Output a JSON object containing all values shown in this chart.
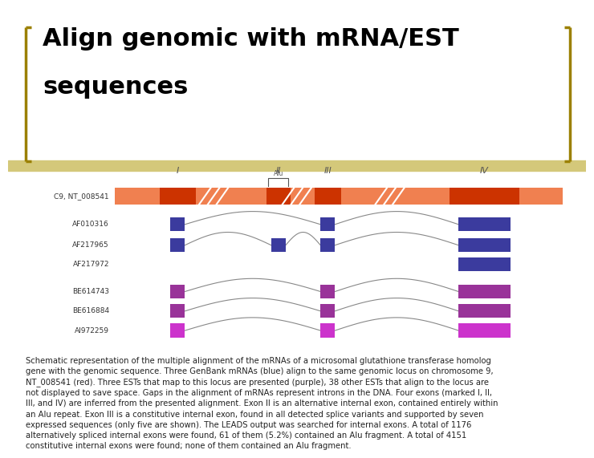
{
  "title_line1": "Align genomic with mRNA/EST",
  "title_line2": "sequences",
  "title_fontsize": 22,
  "title_color": "#000000",
  "bracket_color": "#9B8000",
  "divider_color": "#D4C87A",
  "bg_color": "#ffffff",
  "caption": "Schematic representation of the multiple alignment of the mRNAs of a microsomal glutathione transferase homolog\ngene with the genomic sequence. Three GenBank mRNAs (blue) align to the same genomic locus on chromosome 9,\nNT_008541 (red). Three ESTs that map to this locus are presented (purple), 38 other ESTs that align to the locus are\nnot displayed to save space. Gaps in the alignment of mRNAs represent introns in the DNA. Four exons (marked I, II,\nIII, and IV) are inferred from the presented alignment. Exon II is an alternative internal exon, contained entirely within\nan Alu repeat. Exon III is a constitutive internal exon, found in all detected splice variants and supported by seven\nexpressed sequences (only five are shown). The LEADS output was searched for internal exons. A total of 1176\nalternatively spliced internal exons were found, 61 of them (5.2%) contained an Alu fragment. A total of 4151\nconstitutive internal exons were found; none of them contained an Alu fragment.",
  "caption_fontsize": 7.2,
  "exon_labels": [
    "I",
    "II",
    "III",
    "IV"
  ],
  "genomic_label": "C9, NT_008541",
  "genomic_color_light": "#F08050",
  "genomic_color_dark": "#CC3300",
  "sequences": [
    {
      "label": "AF010316",
      "color": "#3B3B9E",
      "exons": [
        0,
        2,
        3
      ]
    },
    {
      "label": "AF217965",
      "color": "#3B3B9E",
      "exons": [
        0,
        1,
        2,
        3
      ]
    },
    {
      "label": "AF217972",
      "color": "#3B3B9E",
      "exons": [
        3
      ]
    },
    {
      "label": "BE614743",
      "color": "#993399",
      "exons": [
        0,
        2,
        3
      ]
    },
    {
      "label": "BE616884",
      "color": "#993399",
      "exons": [
        0,
        2,
        3
      ]
    },
    {
      "label": "AI972259",
      "color": "#CC33CC",
      "exons": [
        0,
        2,
        3
      ]
    }
  ]
}
